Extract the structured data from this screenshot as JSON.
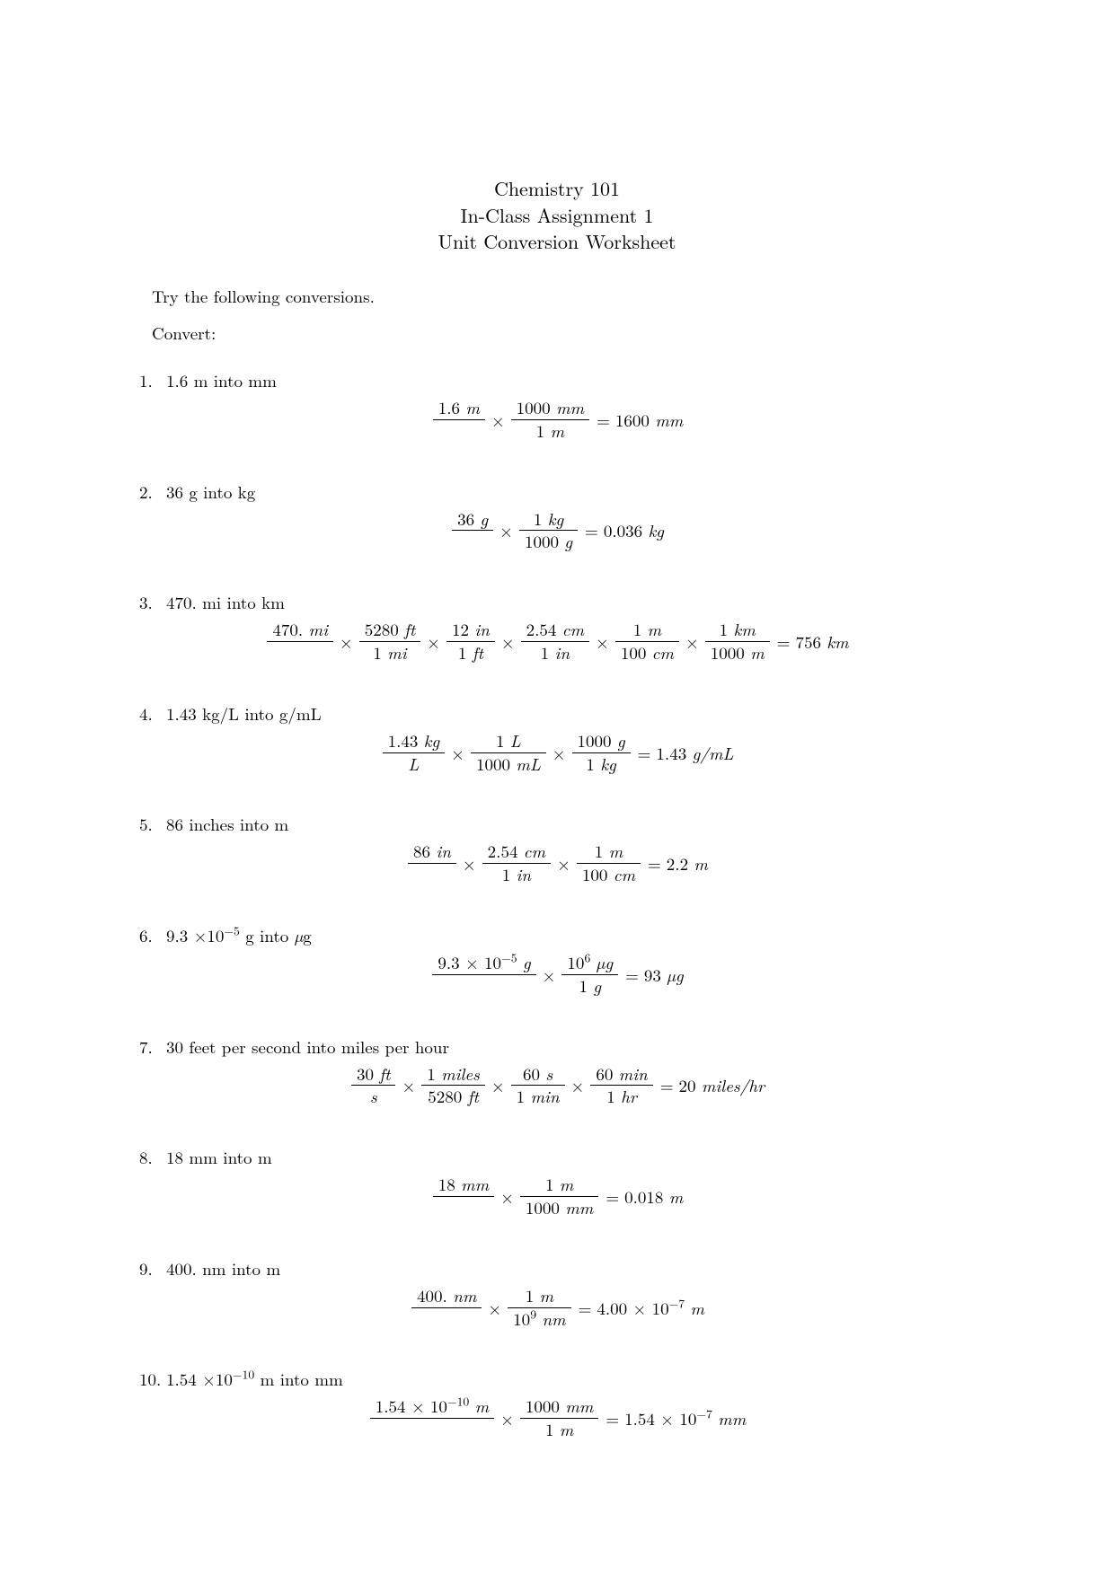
{
  "title": {
    "line1": "Chemistry 101",
    "line2": "In-Class Assignment 1",
    "line3": "Unit Conversion Worksheet"
  },
  "intro": "Try the following conversions.",
  "convert_label": "Convert:",
  "problems": [
    {
      "prompt": "1.6 m into mm",
      "fracs": [
        {
          "num": "1.6 <span class='it'>m</span>",
          "den": ""
        },
        {
          "num": "1000 <span class='it'>mm</span>",
          "den": "1 <span class='it'>m</span>"
        }
      ],
      "result": "1600 <span class='it'>mm</span>"
    },
    {
      "prompt": "36 g into kg",
      "fracs": [
        {
          "num": "36 <span class='it'>g</span>",
          "den": ""
        },
        {
          "num": "1 <span class='it'>kg</span>",
          "den": "1000 <span class='it'>g</span>"
        }
      ],
      "result": "0.036 <span class='it'>kg</span>"
    },
    {
      "prompt": "470. mi into km",
      "fracs": [
        {
          "num": "470. <span class='it'>mi</span>",
          "den": ""
        },
        {
          "num": "5280 <span class='it'>ft</span>",
          "den": "1 <span class='it'>mi</span>"
        },
        {
          "num": "12 <span class='it'>in</span>",
          "den": "1 <span class='it'>ft</span>"
        },
        {
          "num": "2.54 <span class='it'>cm</span>",
          "den": "1 <span class='it'>in</span>"
        },
        {
          "num": "1 <span class='it'>m</span>",
          "den": "100 <span class='it'>cm</span>"
        },
        {
          "num": "1 <span class='it'>km</span>",
          "den": "1000 <span class='it'>m</span>"
        }
      ],
      "result": "756 <span class='it'>km</span>"
    },
    {
      "prompt": "1.43 kg/L into g/mL",
      "fracs": [
        {
          "num": "1.43 <span class='it'>kg</span>",
          "den": "<span class='it'>L</span>"
        },
        {
          "num": "1 <span class='it'>L</span>",
          "den": "1000 <span class='it'>mL</span>"
        },
        {
          "num": "1000 <span class='it'>g</span>",
          "den": "1 <span class='it'>kg</span>"
        }
      ],
      "result": "1.43 <span class='it'>g/mL</span>"
    },
    {
      "prompt": "86 inches into m",
      "fracs": [
        {
          "num": "86 <span class='it'>in</span>",
          "den": ""
        },
        {
          "num": "2.54 <span class='it'>cm</span>",
          "den": "1 <span class='it'>in</span>"
        },
        {
          "num": "1 <span class='it'>m</span>",
          "den": "100 <span class='it'>cm</span>"
        }
      ],
      "result": "2.2 <span class='it'>m</span>"
    },
    {
      "prompt": "9.3 ×10<sup>−5</sup> g into <span class='it'>µ</span>g",
      "fracs": [
        {
          "num": "9.3 × 10<sup>−5</sup> <span class='it'>g</span>",
          "den": ""
        },
        {
          "num": "10<sup>6</sup> <span class='it'>µg</span>",
          "den": "1 <span class='it'>g</span>"
        }
      ],
      "result": "93 <span class='it'>µg</span>"
    },
    {
      "prompt": "30 feet per second into miles per hour",
      "fracs": [
        {
          "num": "30 <span class='it'>ft</span>",
          "den": "<span class='it'>s</span>"
        },
        {
          "num": "1 <span class='it'>miles</span>",
          "den": "5280 <span class='it'>ft</span>"
        },
        {
          "num": "60 <span class='it'>s</span>",
          "den": "1 <span class='it'>min</span>"
        },
        {
          "num": "60 <span class='it'>min</span>",
          "den": "1 <span class='it'>hr</span>"
        }
      ],
      "result": "20 <span class='it'>miles/hr</span>"
    },
    {
      "prompt": "18 mm into m",
      "fracs": [
        {
          "num": "18 <span class='it'>mm</span>",
          "den": ""
        },
        {
          "num": "1 <span class='it'>m</span>",
          "den": "1000 <span class='it'>mm</span>"
        }
      ],
      "result": "0.018 <span class='it'>m</span>"
    },
    {
      "prompt": "400. nm into m",
      "fracs": [
        {
          "num": "400. <span class='it'>nm</span>",
          "den": ""
        },
        {
          "num": "1 <span class='it'>m</span>",
          "den": "10<sup>9</sup> <span class='it'>nm</span>"
        }
      ],
      "result": "4.00 × 10<sup>−7</sup> <span class='it'>m</span>"
    },
    {
      "prompt": "1.54 ×10<sup>−10</sup> m into mm",
      "fracs": [
        {
          "num": "1.54 × 10<sup>−10</sup> <span class='it'>m</span>",
          "den": ""
        },
        {
          "num": "1000 <span class='it'>mm</span>",
          "den": "1 <span class='it'>m</span>"
        }
      ],
      "result": "1.54 × 10<sup>−7</sup> <span class='it'>mm</span>"
    }
  ]
}
